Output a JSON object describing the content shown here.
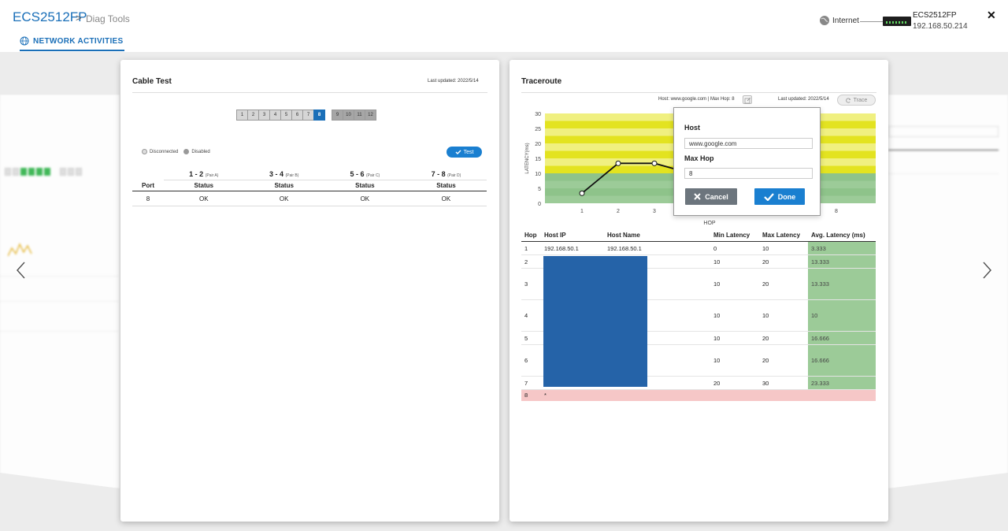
{
  "header": {
    "brand": "ECS2512FP",
    "breadcrumb_sep": ">",
    "breadcrumb": "Diag Tools",
    "tab_label": "NETWORK ACTIVITIES",
    "internet_label": "Internet",
    "device_name": "ECS2512FP",
    "device_ip": "192.168.50.214",
    "close_label": "✕"
  },
  "cable_test": {
    "title": "Cable Test",
    "last_updated": "Last updated: 2022/5/14",
    "ports_enabled": [
      "1",
      "2",
      "3",
      "4",
      "5",
      "6",
      "7",
      "8"
    ],
    "ports_disabled": [
      "9",
      "10",
      "11",
      "12"
    ],
    "selected_port": "8",
    "legend_disconnected": "Disconnected",
    "legend_disabled": "Disabled",
    "test_button": "Test",
    "pairs": [
      {
        "label": "1 - 2",
        "sub": "(Pair A)"
      },
      {
        "label": "3 - 4",
        "sub": "(Pair B)"
      },
      {
        "label": "5 - 6",
        "sub": "(Pair C)"
      },
      {
        "label": "7 - 8",
        "sub": "(Pair D)"
      }
    ],
    "col_port": "Port",
    "col_status": "Status",
    "row": {
      "port": "8",
      "s1": "OK",
      "s2": "OK",
      "s3": "OK",
      "s4": "OK"
    }
  },
  "traceroute": {
    "title": "Traceroute",
    "host_info": "Host: www.google.com",
    "maxhop_info": "Max Hop: 8",
    "last_updated": "Last updated: 2022/5/14",
    "trace_button": "Trace",
    "columns": [
      "Hop",
      "Host IP",
      "Host Name",
      "Min Latency",
      "Max Latency",
      "Avg. Latency (ms)"
    ],
    "rows": [
      {
        "hop": "1",
        "ip": "192.168.50.1",
        "name": "192.168.50.1",
        "min": "0",
        "max": "10",
        "avg": "3.333"
      },
      {
        "hop": "2",
        "ip": "",
        "name": "",
        "min": "10",
        "max": "20",
        "avg": "13.333"
      },
      {
        "hop": "3",
        "ip": "",
        "name": "",
        "min": "10",
        "max": "20",
        "avg": "13.333"
      },
      {
        "hop": "4",
        "ip": "",
        "name": "",
        "min": "10",
        "max": "10",
        "avg": "10"
      },
      {
        "hop": "5",
        "ip": "",
        "name": "",
        "min": "10",
        "max": "20",
        "avg": "16.666"
      },
      {
        "hop": "6",
        "ip": "",
        "name": "",
        "min": "10",
        "max": "20",
        "avg": "16.666"
      },
      {
        "hop": "7",
        "ip": "",
        "name": "",
        "min": "20",
        "max": "30",
        "avg": "23.333"
      }
    ],
    "error_row": {
      "hop": "8",
      "ip": "*"
    }
  },
  "popup": {
    "host_label": "Host",
    "host_value": "www.google.com",
    "maxhop_label": "Max Hop",
    "maxhop_value": "8",
    "cancel": "Cancel",
    "done": "Done"
  },
  "chart_data": {
    "type": "line",
    "x": [
      1,
      2,
      3,
      4
    ],
    "values": [
      3.333,
      13.333,
      13.333,
      10
    ],
    "xticks": [
      "1",
      "2",
      "3",
      "8"
    ],
    "yticks": [
      "0",
      "5",
      "10",
      "15",
      "20",
      "25",
      "30"
    ],
    "ylim": [
      0,
      30
    ],
    "xlabel": "HOP",
    "ylabel": "LATENCY(ms)",
    "bands": {
      "green": [
        0,
        10
      ],
      "yellow": [
        10,
        30
      ]
    },
    "colors": {
      "green": "#9ccb98",
      "yellow": "#e3e320",
      "line": "#111111"
    }
  }
}
